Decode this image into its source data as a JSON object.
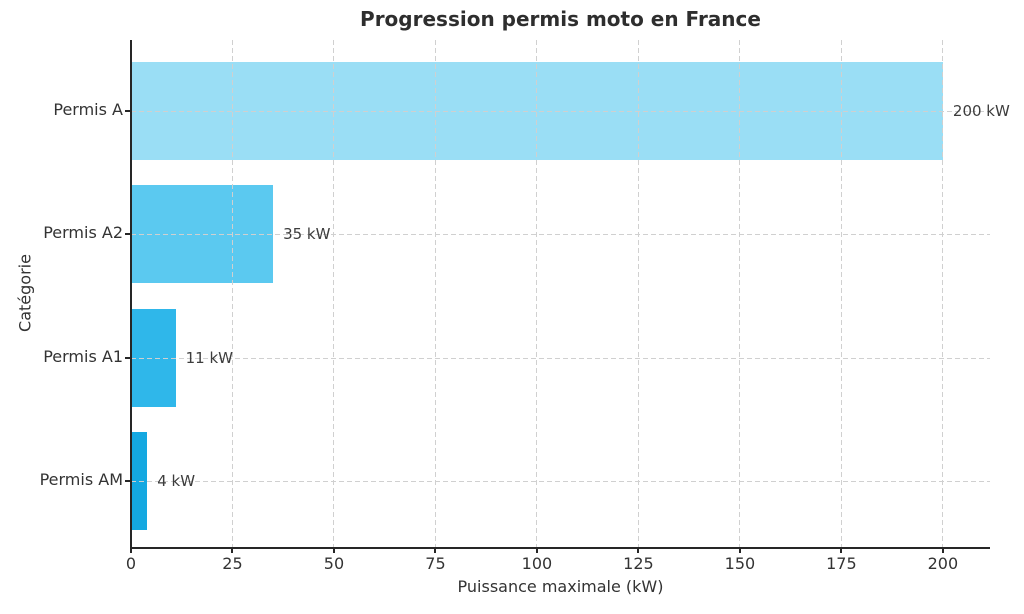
{
  "chart_data": {
    "type": "bar",
    "orientation": "horizontal",
    "title": "Progression permis moto en France",
    "xlabel": "Puissance maximale (kW)",
    "ylabel": "Catégorie",
    "categories": [
      "Permis A",
      "Permis A2",
      "Permis A1",
      "Permis AM"
    ],
    "values": [
      200,
      35,
      11,
      4
    ],
    "value_labels": [
      "200 kW",
      "35 kW",
      "11 kW",
      "4 kW"
    ],
    "bar_colors": [
      "#9ADEF5",
      "#5BC9F0",
      "#2FB7EA",
      "#14A8E1"
    ],
    "xticks": [
      0,
      25,
      50,
      75,
      100,
      125,
      150,
      175,
      200
    ],
    "xlim": [
      0,
      211.6
    ],
    "grid": "dashed",
    "grid_color": "#d0d0d0",
    "legend_position": "none",
    "background_color": "#ffffff",
    "spine_color": "#262626",
    "text_color": "#333333"
  }
}
